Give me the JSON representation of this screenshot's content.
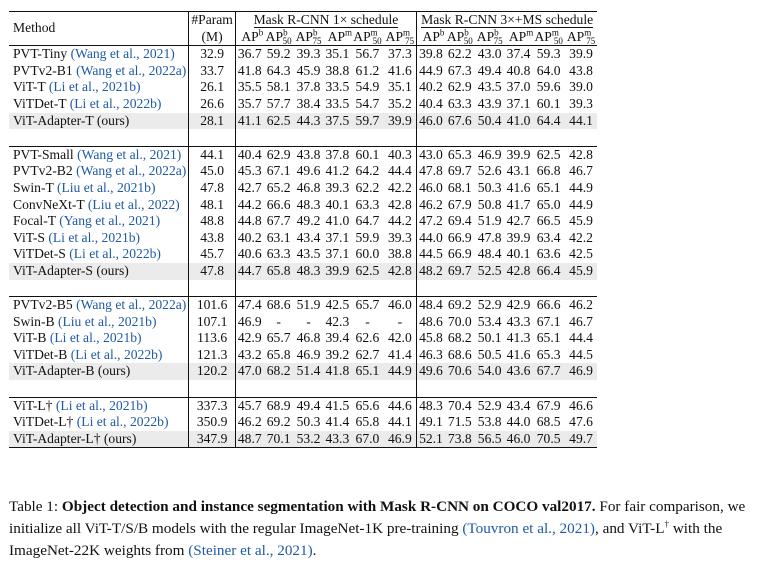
{
  "header": {
    "method": "Method",
    "param_top": "#Param",
    "param_bottom": "(M)",
    "schedule1": "Mask R-CNN 1× schedule",
    "schedule2": "Mask R-CNN 3×+MS schedule",
    "ap_base": "AP",
    "metric_sup": [
      "b",
      "b",
      "b",
      "m",
      "m",
      "m"
    ],
    "metric_sub": [
      "",
      "50",
      "75",
      "",
      "50",
      "75"
    ]
  },
  "groups": [
    [
      {
        "name": "PVT-Tiny",
        "cite": "(Wang et al., 2021)",
        "params": "32.9",
        "s1": [
          "36.7",
          "59.2",
          "39.3",
          "35.1",
          "56.7",
          "37.3"
        ],
        "s2": [
          "39.8",
          "62.2",
          "43.0",
          "37.4",
          "59.3",
          "39.9"
        ],
        "hl": false
      },
      {
        "name": "PVTv2-B1",
        "cite": "(Wang et al., 2022a)",
        "params": "33.7",
        "s1": [
          "41.8",
          "64.3",
          "45.9",
          "38.8",
          "61.2",
          "41.6"
        ],
        "s2": [
          "44.9",
          "67.3",
          "49.4",
          "40.8",
          "64.0",
          "43.8"
        ],
        "hl": false
      },
      {
        "name": "ViT-T",
        "cite": "(Li et al., 2021b)",
        "params": "26.1",
        "s1": [
          "35.5",
          "58.1",
          "37.8",
          "33.5",
          "54.9",
          "35.1"
        ],
        "s2": [
          "40.2",
          "62.9",
          "43.5",
          "37.0",
          "59.6",
          "39.0"
        ],
        "hl": false
      },
      {
        "name": "ViTDet-T",
        "cite": "(Li et al., 2022b)",
        "params": "26.6",
        "s1": [
          "35.7",
          "57.7",
          "38.4",
          "33.5",
          "54.7",
          "35.2"
        ],
        "s2": [
          "40.4",
          "63.3",
          "43.9",
          "37.1",
          "60.1",
          "39.3"
        ],
        "hl": false
      },
      {
        "name": "ViT-Adapter-T (ours)",
        "cite": "",
        "params": "28.1",
        "s1": [
          "41.1",
          "62.5",
          "44.3",
          "37.5",
          "59.7",
          "39.9"
        ],
        "s2": [
          "46.0",
          "67.6",
          "50.4",
          "41.0",
          "64.4",
          "44.1"
        ],
        "hl": true
      }
    ],
    [
      {
        "name": "PVT-Small",
        "cite": "(Wang et al., 2021)",
        "params": "44.1",
        "s1": [
          "40.4",
          "62.9",
          "43.8",
          "37.8",
          "60.1",
          "40.3"
        ],
        "s2": [
          "43.0",
          "65.3",
          "46.9",
          "39.9",
          "62.5",
          "42.8"
        ],
        "hl": false
      },
      {
        "name": "PVTv2-B2",
        "cite": "(Wang et al., 2022a)",
        "params": "45.0",
        "s1": [
          "45.3",
          "67.1",
          "49.6",
          "41.2",
          "64.2",
          "44.4"
        ],
        "s2": [
          "47.8",
          "69.7",
          "52.6",
          "43.1",
          "66.8",
          "46.7"
        ],
        "hl": false
      },
      {
        "name": "Swin-T",
        "cite": "(Liu et al., 2021b)",
        "params": "47.8",
        "s1": [
          "42.7",
          "65.2",
          "46.8",
          "39.3",
          "62.2",
          "42.2"
        ],
        "s2": [
          "46.0",
          "68.1",
          "50.3",
          "41.6",
          "65.1",
          "44.9"
        ],
        "hl": false
      },
      {
        "name": "ConvNeXt-T",
        "cite": "(Liu et al., 2022)",
        "params": "48.1",
        "s1": [
          "44.2",
          "66.6",
          "48.3",
          "40.1",
          "63.3",
          "42.8"
        ],
        "s2": [
          "46.2",
          "67.9",
          "50.8",
          "41.7",
          "65.0",
          "44.9"
        ],
        "hl": false
      },
      {
        "name": "Focal-T",
        "cite": "(Yang et al., 2021)",
        "params": "48.8",
        "s1": [
          "44.8",
          "67.7",
          "49.2",
          "41.0",
          "64.7",
          "44.2"
        ],
        "s2": [
          "47.2",
          "69.4",
          "51.9",
          "42.7",
          "66.5",
          "45.9"
        ],
        "hl": false
      },
      {
        "name": "ViT-S",
        "cite": "(Li et al., 2021b)",
        "params": "43.8",
        "s1": [
          "40.2",
          "63.1",
          "43.4",
          "37.1",
          "59.9",
          "39.3"
        ],
        "s2": [
          "44.0",
          "66.9",
          "47.8",
          "39.9",
          "63.4",
          "42.2"
        ],
        "hl": false
      },
      {
        "name": "ViTDet-S",
        "cite": "(Li et al., 2022b)",
        "params": "45.7",
        "s1": [
          "40.6",
          "63.3",
          "43.5",
          "37.1",
          "60.0",
          "38.8"
        ],
        "s2": [
          "44.5",
          "66.9",
          "48.4",
          "40.1",
          "63.6",
          "42.5"
        ],
        "hl": false
      },
      {
        "name": "ViT-Adapter-S (ours)",
        "cite": "",
        "params": "47.8",
        "s1": [
          "44.7",
          "65.8",
          "48.3",
          "39.9",
          "62.5",
          "42.8"
        ],
        "s2": [
          "48.2",
          "69.7",
          "52.5",
          "42.8",
          "66.4",
          "45.9"
        ],
        "hl": true
      }
    ],
    [
      {
        "name": "PVTv2-B5",
        "cite": "(Wang et al., 2022a)",
        "params": "101.6",
        "s1": [
          "47.4",
          "68.6",
          "51.9",
          "42.5",
          "65.7",
          "46.0"
        ],
        "s2": [
          "48.4",
          "69.2",
          "52.9",
          "42.9",
          "66.6",
          "46.2"
        ],
        "hl": false
      },
      {
        "name": "Swin-B",
        "cite": "(Liu et al., 2021b)",
        "params": "107.1",
        "s1": [
          "46.9",
          "-",
          "-",
          "42.3",
          "-",
          "-"
        ],
        "s2": [
          "48.6",
          "70.0",
          "53.4",
          "43.3",
          "67.1",
          "46.7"
        ],
        "hl": false
      },
      {
        "name": "ViT-B",
        "cite": "(Li et al., 2021b)",
        "params": "113.6",
        "s1": [
          "42.9",
          "65.7",
          "46.8",
          "39.4",
          "62.6",
          "42.0"
        ],
        "s2": [
          "45.8",
          "68.2",
          "50.1",
          "41.3",
          "65.1",
          "44.4"
        ],
        "hl": false
      },
      {
        "name": "ViTDet-B",
        "cite": "(Li et al., 2022b)",
        "params": "121.3",
        "s1": [
          "43.2",
          "65.8",
          "46.9",
          "39.2",
          "62.7",
          "41.4"
        ],
        "s2": [
          "46.3",
          "68.6",
          "50.5",
          "41.6",
          "65.3",
          "44.5"
        ],
        "hl": false
      },
      {
        "name": "ViT-Adapter-B (ours)",
        "cite": "",
        "params": "120.2",
        "s1": [
          "47.0",
          "68.2",
          "51.4",
          "41.8",
          "65.1",
          "44.9"
        ],
        "s2": [
          "49.6",
          "70.6",
          "54.0",
          "43.6",
          "67.7",
          "46.9"
        ],
        "hl": true
      }
    ],
    [
      {
        "name": "ViT-L†",
        "cite": "(Li et al., 2021b)",
        "params": "337.3",
        "s1": [
          "45.7",
          "68.9",
          "49.4",
          "41.5",
          "65.6",
          "44.6"
        ],
        "s2": [
          "48.3",
          "70.4",
          "52.9",
          "43.4",
          "67.9",
          "46.6"
        ],
        "hl": false
      },
      {
        "name": "ViTDet-L†",
        "cite": "(Li et al., 2022b)",
        "params": "350.9",
        "s1": [
          "46.2",
          "69.2",
          "50.3",
          "41.4",
          "65.8",
          "44.1"
        ],
        "s2": [
          "49.1",
          "71.5",
          "53.8",
          "44.0",
          "68.5",
          "47.6"
        ],
        "hl": false
      },
      {
        "name": "ViT-Adapter-L† (ours)",
        "cite": "",
        "params": "347.9",
        "s1": [
          "48.7",
          "70.1",
          "53.2",
          "43.3",
          "67.0",
          "46.9"
        ],
        "s2": [
          "52.1",
          "73.8",
          "56.5",
          "46.0",
          "70.5",
          "49.7"
        ],
        "hl": true
      }
    ]
  ],
  "caption": {
    "label": "Table 1:",
    "bold": "Object detection and instance segmentation with Mask R-CNN on COCO val2017.",
    "text1": "For fair comparison, we initialize all ViT-T/S/B models with the regular ImageNet-1K pre-training",
    "cite1": "(Touvron et al., 2021)",
    "text2": ", and ViT-L",
    "dagger": "†",
    "text3": "with the ImageNet-22K weights from",
    "cite2": "(Steiner et al., 2021)",
    "text4": "."
  }
}
